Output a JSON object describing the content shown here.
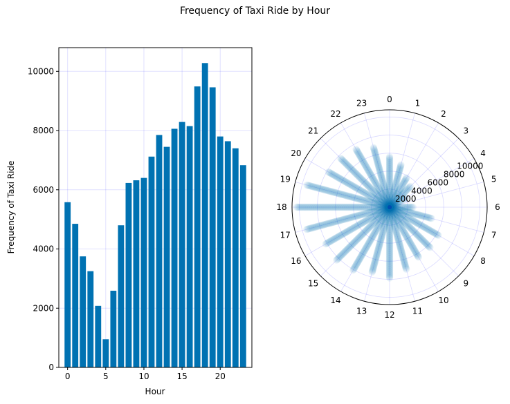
{
  "figure": {
    "title": "Frequency of Taxi Ride by Hour"
  },
  "colors": {
    "bar": "#0072B2",
    "grid": "#0000ff",
    "axis": "#000000"
  },
  "chart_data": [
    {
      "type": "bar",
      "title": "",
      "xlabel": "Hour",
      "ylabel": "Frequency of Taxi Ride",
      "categories": [
        0,
        1,
        2,
        3,
        4,
        5,
        6,
        7,
        8,
        9,
        10,
        11,
        12,
        13,
        14,
        15,
        16,
        17,
        18,
        19,
        20,
        21,
        22,
        23
      ],
      "values": [
        5580,
        4850,
        3750,
        3250,
        2080,
        950,
        2590,
        4800,
        6230,
        6320,
        6400,
        7120,
        7850,
        7450,
        8060,
        8290,
        8150,
        9490,
        10280,
        9460,
        7800,
        7640,
        7400,
        6830
      ],
      "xlim": [
        -1.15,
        24.15
      ],
      "ylim": [
        0,
        10800
      ],
      "xticks": [
        0,
        5,
        10,
        15,
        20
      ],
      "yticks": [
        0,
        2000,
        4000,
        6000,
        8000,
        10000
      ],
      "grid": true
    },
    {
      "type": "scatter",
      "projection": "polar",
      "title": "",
      "theta_tick_labels": [
        "0",
        "1",
        "2",
        "3",
        "4",
        "5",
        "6",
        "7",
        "8",
        "9",
        "10",
        "11",
        "12",
        "13",
        "14",
        "15",
        "16",
        "17",
        "18",
        "19",
        "20",
        "21",
        "22",
        "23"
      ],
      "theta_direction": "clockwise",
      "theta_zero_location": "top",
      "r_ticks": [
        2000,
        4000,
        6000,
        8000,
        10000
      ],
      "rlim": [
        0,
        10800
      ],
      "grid": true,
      "point_alpha": 0.08,
      "note_source": "each hour h shows a radial band of points from r = 0 to r = count(h)",
      "x": [
        0,
        1,
        2,
        3,
        4,
        5,
        6,
        7,
        8,
        9,
        10,
        11,
        12,
        13,
        14,
        15,
        16,
        17,
        18,
        19,
        20,
        21,
        22,
        23
      ],
      "y": [
        5580,
        4850,
        3750,
        3250,
        2080,
        950,
        2590,
        4800,
        6230,
        6320,
        6400,
        7120,
        7850,
        7450,
        8060,
        8290,
        8150,
        9490,
        10280,
        9460,
        7800,
        7640,
        7400,
        6830
      ]
    }
  ]
}
